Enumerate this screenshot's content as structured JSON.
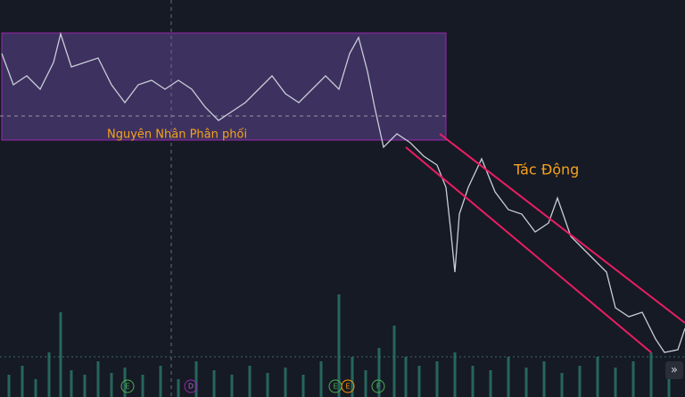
{
  "annotations": {
    "zone_label": "Nguyên Nhân Phân phối",
    "impact_label": "Tác Động"
  },
  "markers": [
    "E",
    "D",
    "E",
    "E",
    "F"
  ],
  "scroll_button": "»"
}
